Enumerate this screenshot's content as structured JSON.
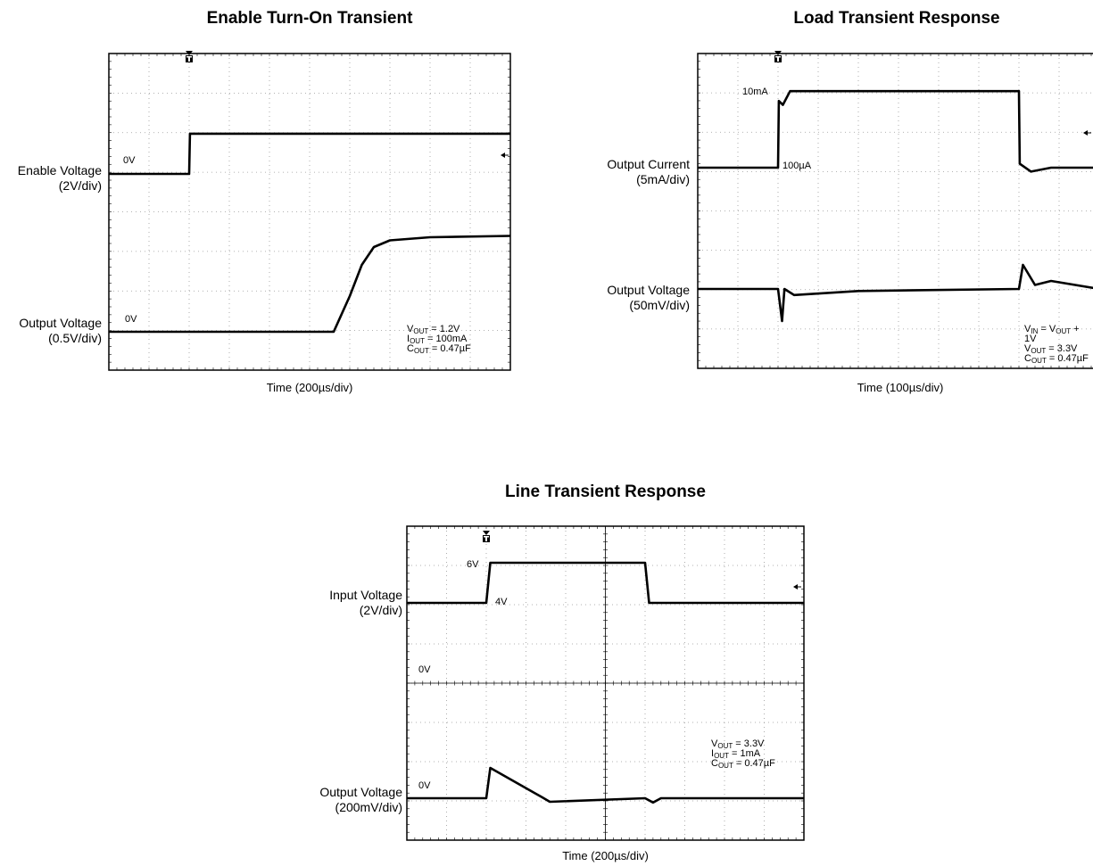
{
  "chart_data": [
    {
      "type": "line",
      "title": "Enable Turn-On Transient",
      "xlabel": "Time (200µs/div)",
      "channels": [
        {
          "name": "Enable Voltage",
          "scale": "(2V/div)",
          "ground_label": "0V"
        },
        {
          "name": "Output Voltage",
          "scale": "(0.5V/div)",
          "ground_label": "0V"
        }
      ],
      "conditions": [
        {
          "main": "V",
          "sub": "OUT",
          "rest": " = 1.2V"
        },
        {
          "main": "I",
          "sub": "OUT",
          "rest": " = 100mA"
        },
        {
          "main": "C",
          "sub": "OUT",
          "rest": " = 0.47µF"
        }
      ],
      "series": [
        {
          "name": "Enable Voltage",
          "x": [
            0,
            1,
            1.01,
            5
          ],
          "y": [
            0,
            0,
            2.2,
            2.2
          ]
        },
        {
          "name": "Output Voltage",
          "x": [
            0,
            2.8,
            3.0,
            3.15,
            3.3,
            3.5,
            4.0,
            5
          ],
          "y": [
            0,
            0,
            0.8,
            1.5,
            1.9,
            2.05,
            2.12,
            2.15
          ]
        }
      ]
    },
    {
      "type": "line",
      "title": "Load Transient Response",
      "xlabel": "Time (100µs/div)",
      "channels": [
        {
          "name": "Output Current",
          "scale": "(5mA/div)"
        },
        {
          "name": "Output Voltage",
          "scale": "(50mV/div)"
        }
      ],
      "annotations": [
        "10mA",
        "100µA"
      ],
      "conditions": [
        {
          "main": "V",
          "sub": "IN",
          "rest": " = V",
          "sub2": "OUT",
          "rest2": " + 1V"
        },
        {
          "main": "V",
          "sub": "OUT",
          "rest": " = 3.3V"
        },
        {
          "main": "C",
          "sub": "OUT",
          "rest": " = 0.47µF"
        }
      ],
      "series": [
        {
          "name": "Output Current",
          "x": [
            0,
            1,
            1.01,
            1.06,
            1.15,
            4.0,
            4.01,
            4.15,
            4.4,
            5
          ],
          "y": [
            0,
            0,
            1.7,
            1.6,
            1.95,
            1.95,
            0.1,
            -0.1,
            0,
            0
          ]
        },
        {
          "name": "Output Voltage",
          "x": [
            0,
            1,
            1.05,
            1.08,
            1.2,
            2.0,
            4.0,
            4.05,
            4.2,
            4.4,
            5
          ],
          "y": [
            0,
            0,
            -0.8,
            0,
            -0.15,
            -0.05,
            0,
            0.6,
            0.1,
            0.2,
            0
          ]
        }
      ]
    },
    {
      "type": "line",
      "title": "Line Transient Response",
      "xlabel": "Time (200µs/div)",
      "channels": [
        {
          "name": "Input Voltage",
          "scale": "(2V/div)"
        },
        {
          "name": "Output Voltage",
          "scale": "(200mV/div)",
          "ground_label": "0V"
        }
      ],
      "annotations": [
        "6V",
        "4V",
        "0V"
      ],
      "conditions": [
        {
          "main": "V",
          "sub": "OUT",
          "rest": " = 3.3V"
        },
        {
          "main": "I",
          "sub": "OUT",
          "rest": " = 1mA"
        },
        {
          "main": "C",
          "sub": "OUT",
          "rest": " = 0.47µF"
        }
      ],
      "series": [
        {
          "name": "Input Voltage",
          "x": [
            0,
            1,
            1.05,
            3.0,
            3.05,
            5
          ],
          "y": [
            4,
            4,
            6,
            6,
            4,
            4
          ]
        },
        {
          "name": "Output Voltage",
          "x": [
            0,
            1,
            1.05,
            1.7,
            1.8,
            3.0,
            3.1,
            3.2,
            5
          ],
          "y": [
            0,
            0,
            0.85,
            0.03,
            -0.1,
            0,
            -0.12,
            0,
            0
          ]
        }
      ]
    }
  ]
}
